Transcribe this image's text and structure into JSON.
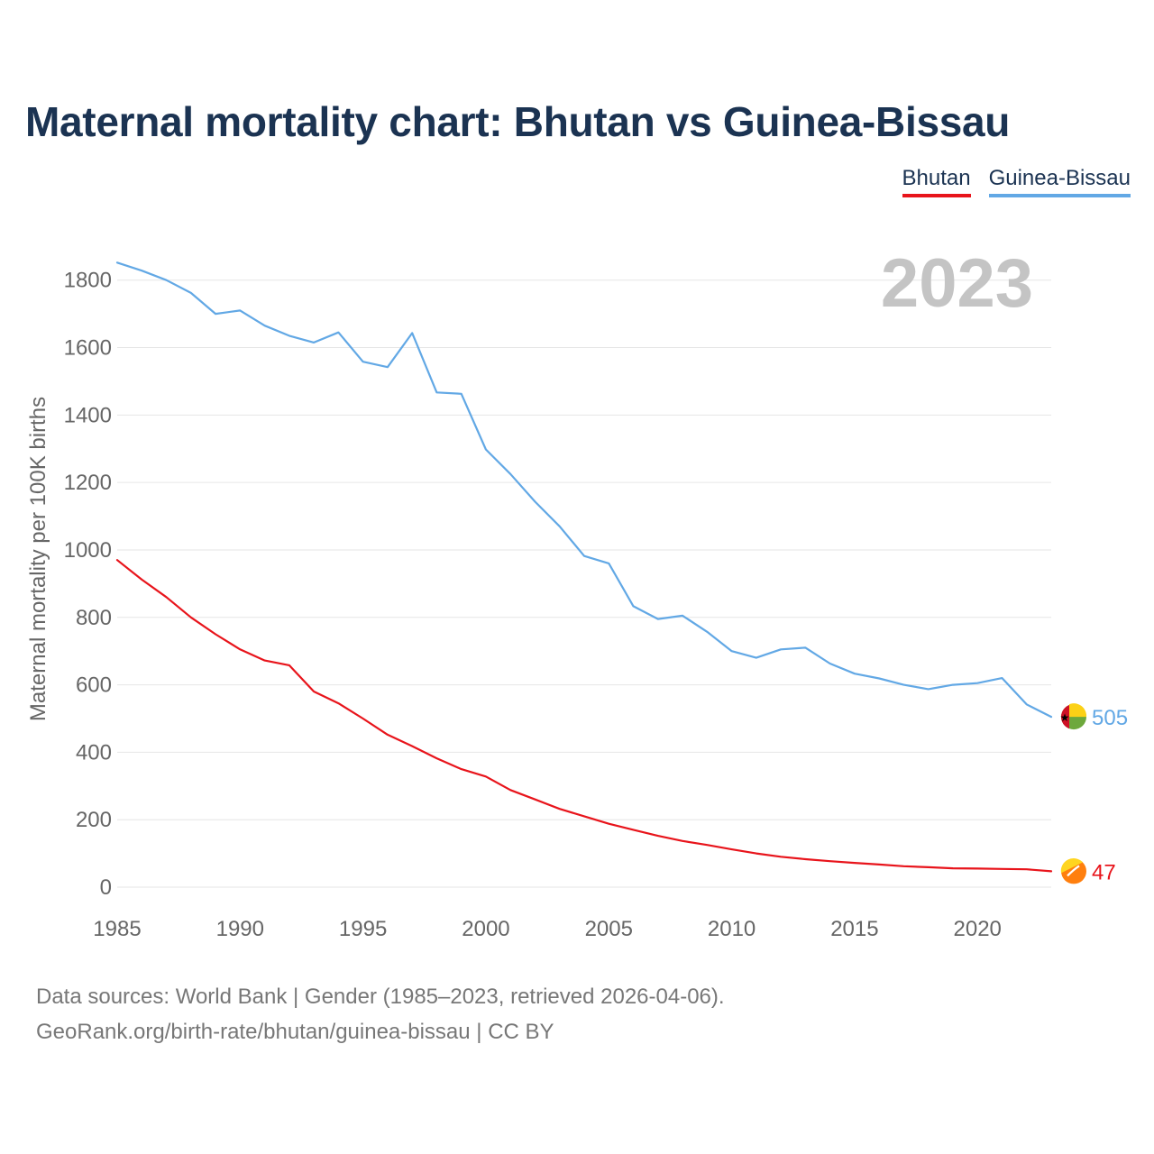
{
  "title": "Maternal mortality chart: Bhutan vs Guinea-Bissau",
  "legend": [
    {
      "label": "Bhutan",
      "color": "#e8141b"
    },
    {
      "label": "Guinea-Bissau",
      "color": "#62a8e5"
    }
  ],
  "year_label": "2023",
  "source_line1": "Data sources: World Bank | Gender (1985–2023, retrieved 2026-04-06).",
  "source_line2": "GeoRank.org/birth-rate/bhutan/guinea-bissau | CC BY",
  "chart_data": {
    "type": "line",
    "title": "Maternal mortality chart: Bhutan vs Guinea-Bissau",
    "xlabel": "",
    "ylabel": "Maternal mortality per 100K births",
    "xlim": [
      1985,
      2023
    ],
    "ylim": [
      0,
      1850
    ],
    "x_ticks": [
      1985,
      1990,
      1995,
      2000,
      2005,
      2010,
      2015,
      2020
    ],
    "y_ticks": [
      0,
      200,
      400,
      600,
      800,
      1000,
      1200,
      1400,
      1600,
      1800
    ],
    "grid": true,
    "legend_position": "top-right",
    "x": [
      1985,
      1986,
      1987,
      1988,
      1989,
      1990,
      1991,
      1992,
      1993,
      1994,
      1995,
      1996,
      1997,
      1998,
      1999,
      2000,
      2001,
      2002,
      2003,
      2004,
      2005,
      2006,
      2007,
      2008,
      2009,
      2010,
      2011,
      2012,
      2013,
      2014,
      2015,
      2016,
      2017,
      2018,
      2019,
      2020,
      2021,
      2022,
      2023
    ],
    "series": [
      {
        "name": "Bhutan",
        "color": "#e8141b",
        "values": [
          970,
          912,
          860,
          800,
          750,
          705,
          672,
          658,
          580,
          545,
          500,
          452,
          418,
          382,
          350,
          328,
          288,
          260,
          232,
          210,
          188,
          170,
          152,
          137,
          125,
          112,
          100,
          90,
          83,
          77,
          72,
          67,
          62,
          59,
          56,
          55,
          54,
          53,
          47
        ],
        "end_label": "47"
      },
      {
        "name": "Guinea-Bissau",
        "color": "#62a8e5",
        "values": [
          1852,
          1828,
          1800,
          1762,
          1700,
          1710,
          1665,
          1635,
          1615,
          1645,
          1558,
          1542,
          1643,
          1467,
          1463,
          1298,
          1225,
          1143,
          1070,
          982,
          960,
          833,
          795,
          805,
          757,
          700,
          680,
          705,
          710,
          663,
          633,
          619,
          600,
          587,
          600,
          605,
          620,
          542,
          505
        ],
        "end_label": "505"
      }
    ]
  }
}
